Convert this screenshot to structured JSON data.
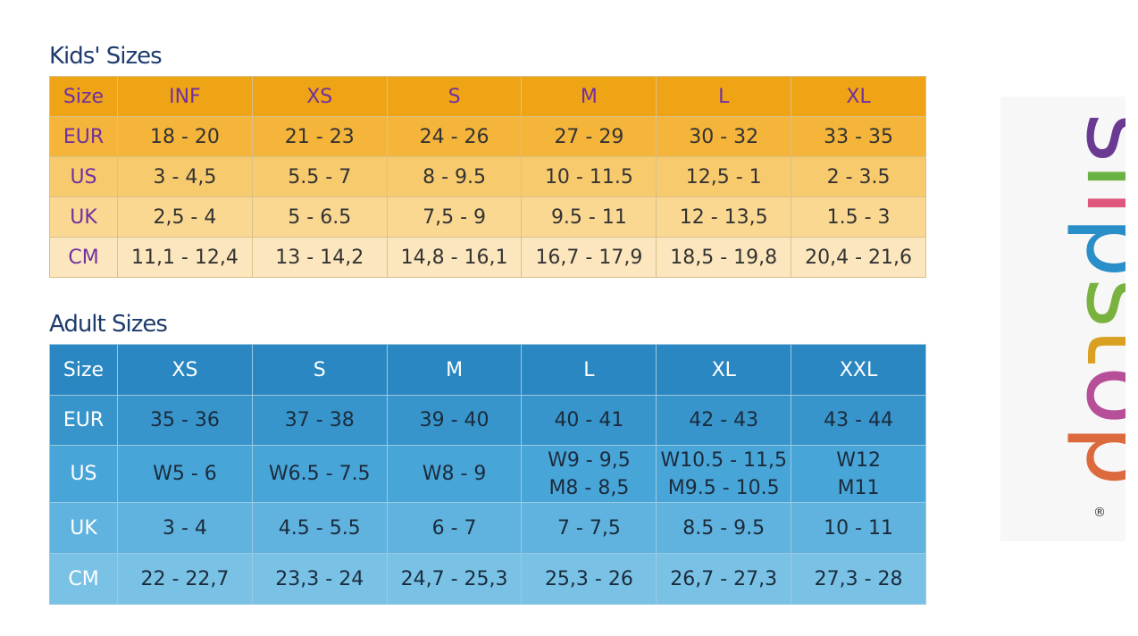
{
  "kids": {
    "title": "Kids' Sizes",
    "header": [
      "Size",
      "INF",
      "XS",
      "S",
      "M",
      "L",
      "XL"
    ],
    "rows": [
      [
        "EUR",
        "18 - 20",
        "21 - 23",
        "24 - 26",
        "27 - 29",
        "30 - 32",
        "33 - 35"
      ],
      [
        "US",
        "3 - 4,5",
        "5.5 - 7",
        "8 - 9.5",
        "10 - 11.5",
        "12,5 - 1",
        "2 - 3.5"
      ],
      [
        "UK",
        "2,5 - 4",
        "5 - 6.5",
        "7,5 - 9",
        "9.5 - 11",
        "12 - 13,5",
        "1.5 - 3"
      ],
      [
        "CM",
        "11,1 - 12,4",
        "13 - 14,2",
        "14,8 - 16,1",
        "16,7 - 17,9",
        "18,5 - 19,8",
        "20,4 - 21,6"
      ]
    ]
  },
  "adult": {
    "title": "Adult Sizes",
    "header": [
      "Size",
      "XS",
      "S",
      "M",
      "L",
      "XL",
      "XXL"
    ],
    "rows": [
      [
        "EUR",
        "35 - 36",
        "37 - 38",
        "39 - 40",
        "40 - 41",
        "42 - 43",
        "43 - 44"
      ],
      [
        "US",
        "W5 - 6",
        "W6.5 - 7.5",
        "W8 - 9",
        [
          "W9 - 9,5",
          "M8 - 8,5"
        ],
        [
          "W10.5 - 11,5",
          "M9.5 - 10.5"
        ],
        [
          "W12",
          "M11"
        ]
      ],
      [
        "UK",
        "3 - 4",
        "4.5 - 5.5",
        "6 - 7",
        "7 - 7,5",
        "8.5 - 9.5",
        "10 - 11"
      ],
      [
        "CM",
        "22 - 22,7",
        "23,3 - 24",
        "24,7 - 25,3",
        "25,3 - 26",
        "26,7 - 27,3",
        "27,3 - 28"
      ]
    ]
  },
  "logo": {
    "text": "slipstop",
    "mark": "®"
  }
}
